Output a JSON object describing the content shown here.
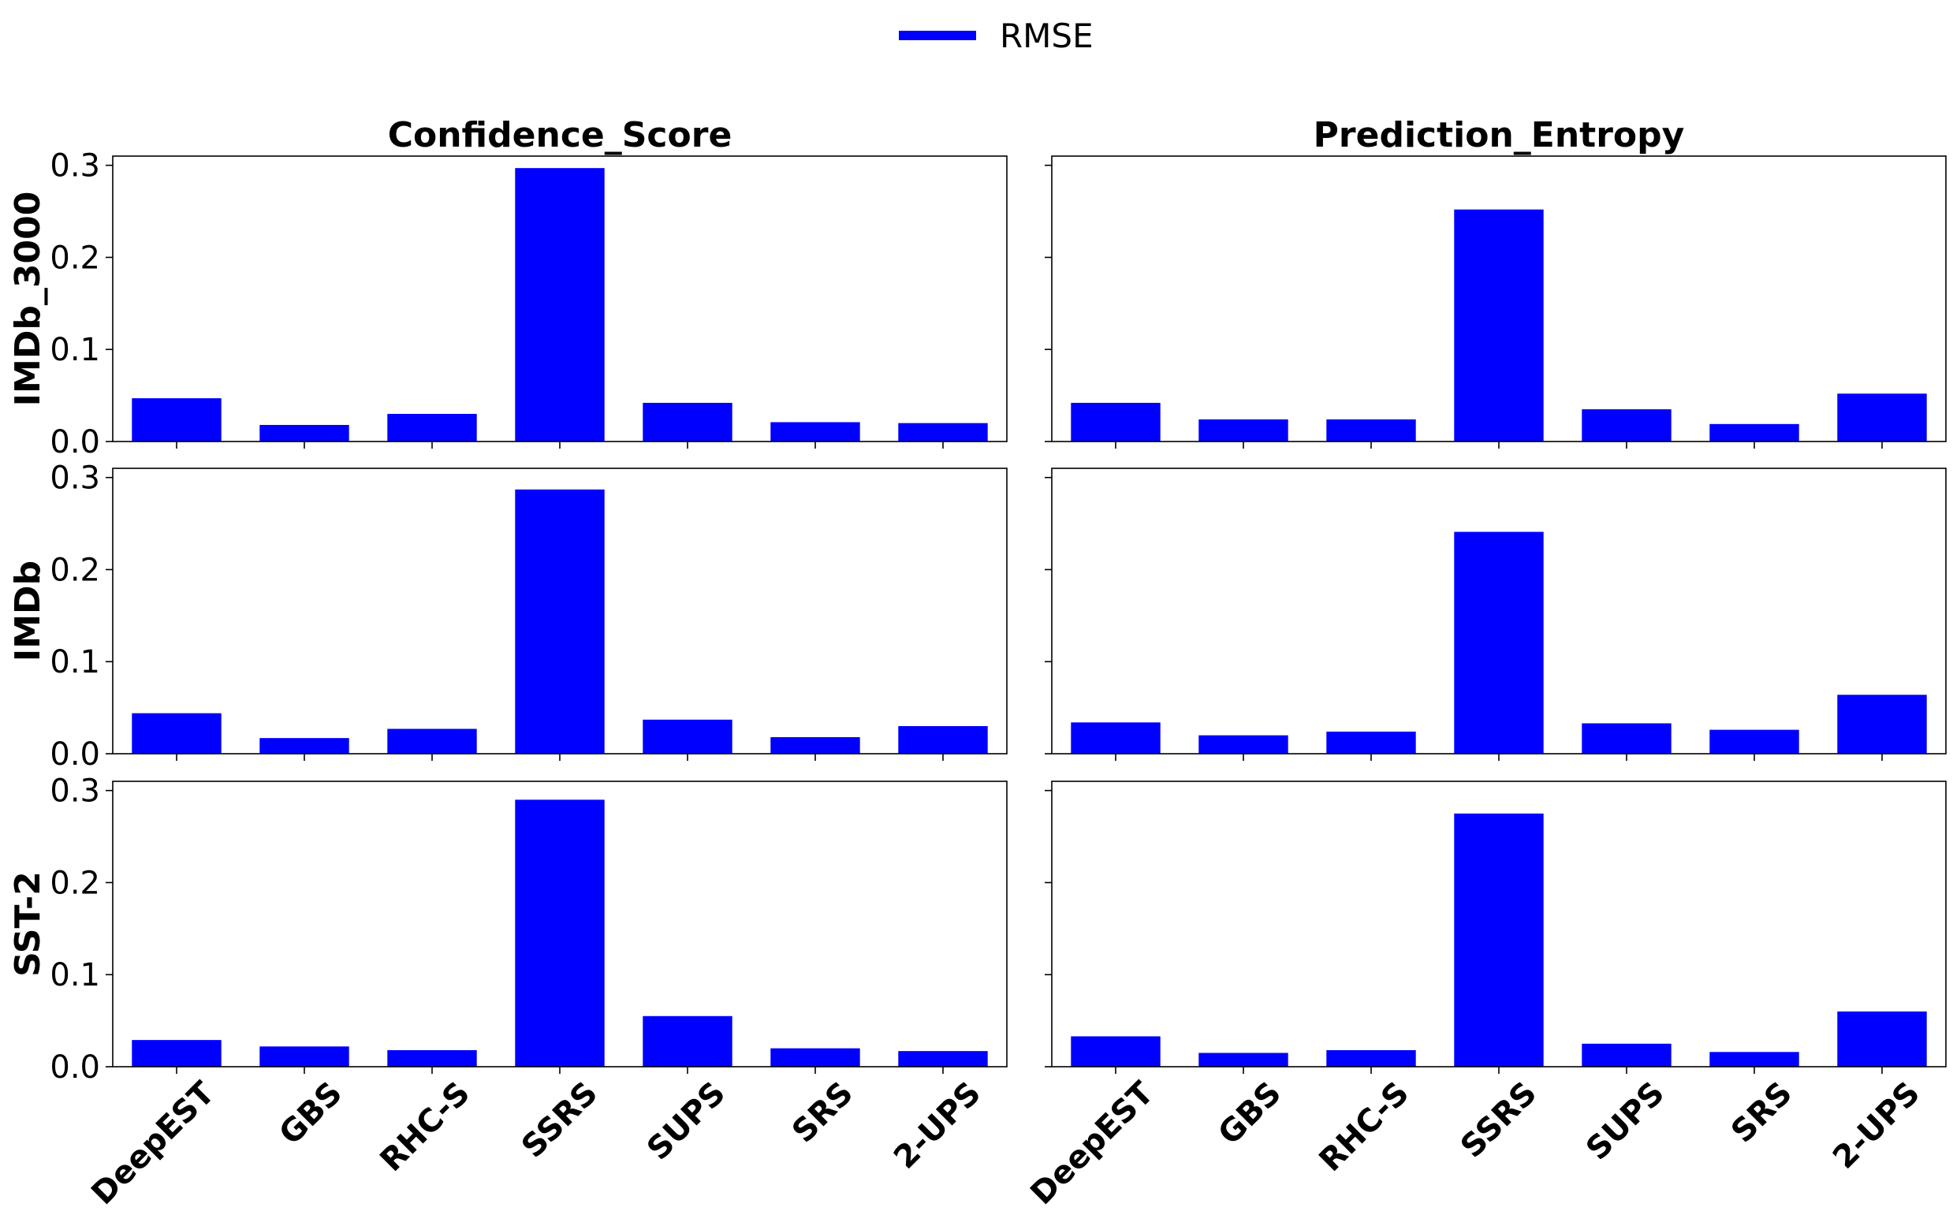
{
  "legend": {
    "label": "RMSE"
  },
  "colors": {
    "bar": "#0000ff"
  },
  "chart_data": {
    "type": "bar",
    "categories": [
      "DeepEST",
      "GBS",
      "RHC-S",
      "SSRS",
      "SUPS",
      "SRS",
      "2-UPS"
    ],
    "columns": [
      "Confidence_Score",
      "Prediction_Entropy"
    ],
    "rows": [
      "IMDb_3000",
      "IMDb",
      "SST-2"
    ],
    "ylim": [
      0,
      0.31
    ],
    "yticks": [
      "0.0",
      "0.1",
      "0.2",
      "0.3"
    ],
    "legend_position": "top-center",
    "grid": false,
    "panels": [
      {
        "row": "IMDb_3000",
        "column": "Confidence_Score",
        "series": [
          {
            "name": "RMSE",
            "values": [
              0.047,
              0.018,
              0.03,
              0.297,
              0.042,
              0.021,
              0.02
            ]
          }
        ]
      },
      {
        "row": "IMDb_3000",
        "column": "Prediction_Entropy",
        "series": [
          {
            "name": "RMSE",
            "values": [
              0.042,
              0.024,
              0.024,
              0.252,
              0.035,
              0.019,
              0.052
            ]
          }
        ]
      },
      {
        "row": "IMDb",
        "column": "Confidence_Score",
        "series": [
          {
            "name": "RMSE",
            "values": [
              0.044,
              0.017,
              0.027,
              0.287,
              0.037,
              0.018,
              0.03
            ]
          }
        ]
      },
      {
        "row": "IMDb",
        "column": "Prediction_Entropy",
        "series": [
          {
            "name": "RMSE",
            "values": [
              0.034,
              0.02,
              0.024,
              0.241,
              0.033,
              0.026,
              0.064
            ]
          }
        ]
      },
      {
        "row": "SST-2",
        "column": "Confidence_Score",
        "series": [
          {
            "name": "RMSE",
            "values": [
              0.029,
              0.022,
              0.018,
              0.29,
              0.055,
              0.02,
              0.017
            ]
          }
        ]
      },
      {
        "row": "SST-2",
        "column": "Prediction_Entropy",
        "series": [
          {
            "name": "RMSE",
            "values": [
              0.033,
              0.015,
              0.018,
              0.275,
              0.025,
              0.016,
              0.06
            ]
          }
        ]
      }
    ]
  }
}
